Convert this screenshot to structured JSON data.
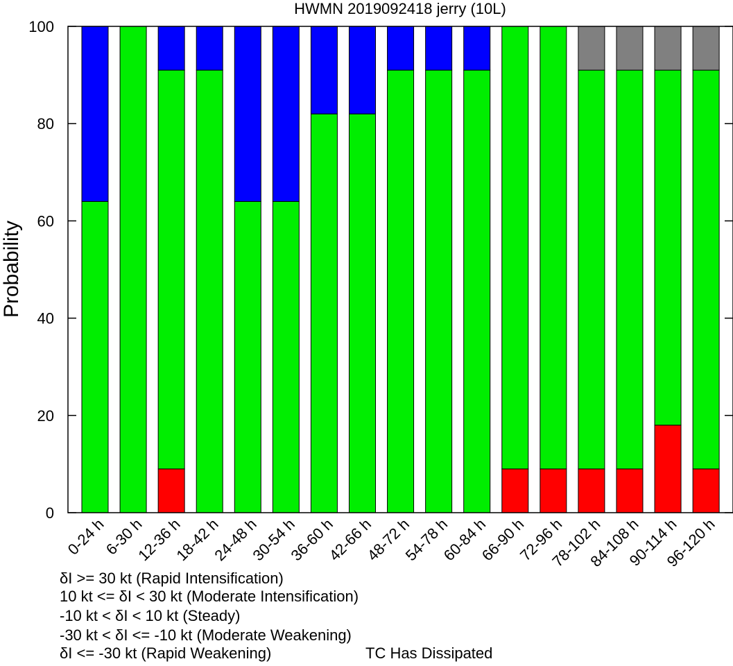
{
  "chart_data": {
    "type": "bar",
    "stacked": true,
    "title": "HWMN 2019092418 jerry (10L)",
    "xlabel": "",
    "ylabel": "Probability",
    "ylim": [
      0,
      100
    ],
    "yticks": [
      0,
      20,
      40,
      60,
      80,
      100
    ],
    "grid": false,
    "categories": [
      "0-24 h",
      "6-30 h",
      "12-36 h",
      "18-42 h",
      "24-48 h",
      "30-54 h",
      "36-60 h",
      "42-66 h",
      "48-72 h",
      "54-78 h",
      "60-84 h",
      "66-90 h",
      "72-96 h",
      "78-102 h",
      "84-108 h",
      "90-114 h",
      "96-120 h"
    ],
    "series": [
      {
        "key": "rapid_weakening",
        "color": "#9933cc",
        "values": [
          0,
          0,
          0,
          0,
          0,
          0,
          0,
          0,
          0,
          0,
          0,
          0,
          0,
          0,
          0,
          0,
          0
        ]
      },
      {
        "key": "moderate_weakening",
        "color": "#0000ff",
        "values": [
          36,
          0,
          9,
          9,
          36,
          36,
          18,
          18,
          9,
          9,
          9,
          0,
          0,
          0,
          0,
          0,
          0
        ]
      },
      {
        "key": "steady",
        "color": "#00ee00",
        "values": [
          64,
          100,
          82,
          91,
          64,
          64,
          82,
          82,
          91,
          91,
          91,
          91,
          91,
          82,
          82,
          73,
          82
        ]
      },
      {
        "key": "moderate_intensification",
        "color": "#ff0000",
        "values": [
          0,
          0,
          9,
          0,
          0,
          0,
          0,
          0,
          0,
          0,
          0,
          9,
          9,
          9,
          9,
          18,
          9
        ]
      },
      {
        "key": "rapid_intensification",
        "color": "#ff00ff",
        "values": [
          0,
          0,
          0,
          0,
          0,
          0,
          0,
          0,
          0,
          0,
          0,
          0,
          0,
          0,
          0,
          0,
          0
        ]
      },
      {
        "key": "dissipated",
        "color": "#808080",
        "values": [
          0,
          0,
          0,
          0,
          0,
          0,
          0,
          0,
          0,
          0,
          0,
          0,
          0,
          9,
          9,
          9,
          9
        ]
      }
    ],
    "stack_order": [
      "moderate_intensification",
      "rapid_intensification",
      "steady",
      "moderate_weakening",
      "rapid_weakening",
      "dissipated"
    ],
    "legend": {
      "placement": "bottom-left",
      "entries": [
        {
          "text": "δI >= 30 kt (Rapid Intensification)",
          "color": "#ff00ff"
        },
        {
          "text": "10 kt <= δI < 30 kt (Moderate Intensification)",
          "color": "#ff0000"
        },
        {
          "text": "-10 kt < δI < 10 kt (Steady)",
          "color": "#00ee00"
        },
        {
          "text": "-30 kt < δI <= -10 kt (Moderate Weakening)",
          "color": "#0000ff"
        },
        {
          "text": "δI <= -30 kt (Rapid Weakening)",
          "color": "#9933cc"
        },
        {
          "text": "TC Has Dissipated",
          "color": "#808080"
        }
      ]
    }
  }
}
